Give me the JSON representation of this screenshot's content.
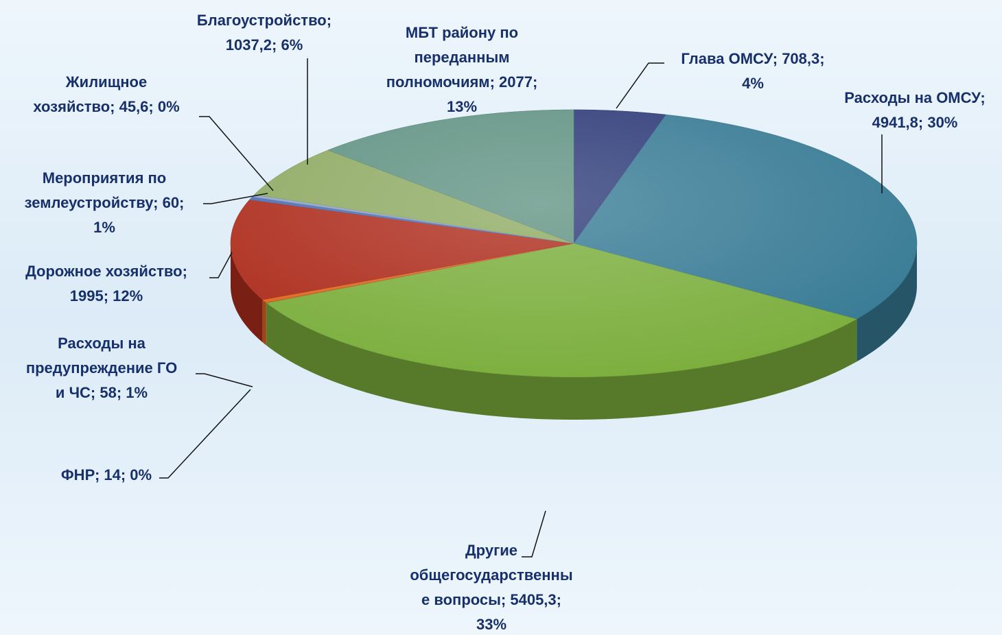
{
  "chart_data": {
    "type": "pie3d",
    "values": [
      708.3,
      4941.8,
      5405.3,
      14,
      58,
      1995,
      60,
      45.6,
      1037.2,
      2077
    ],
    "value_labels": [
      "Глава ОМСУ; 708,3;\n4%",
      "Расходы на ОМСУ;\n4941,8; 30%",
      "Другие\nобщегосударственны\nе вопросы; 5405,3;\n33%",
      "ФНР; 14; 0%",
      "Расходы на\nпредупреждение ГО\nи ЧС; 58; 1%",
      "Дорожное хозяйство;\n1995; 12%",
      "Мероприятия по\nземлеустройству; 60;\n1%",
      "Жилищное\nхозяйство; 45,6; 0%",
      "Благоустройство;\n1037,2; 6%",
      "МБТ району по\nпереданным\nполномочиям; 2077;\n13%"
    ],
    "colors": [
      "#2d3a78",
      "#367a94",
      "#7bae3c",
      "#b8742c",
      "#e0661c",
      "#ad2c1c",
      "#4a6eb4",
      "#8ea2cc",
      "#8eaa62",
      "#5f9282"
    ]
  }
}
